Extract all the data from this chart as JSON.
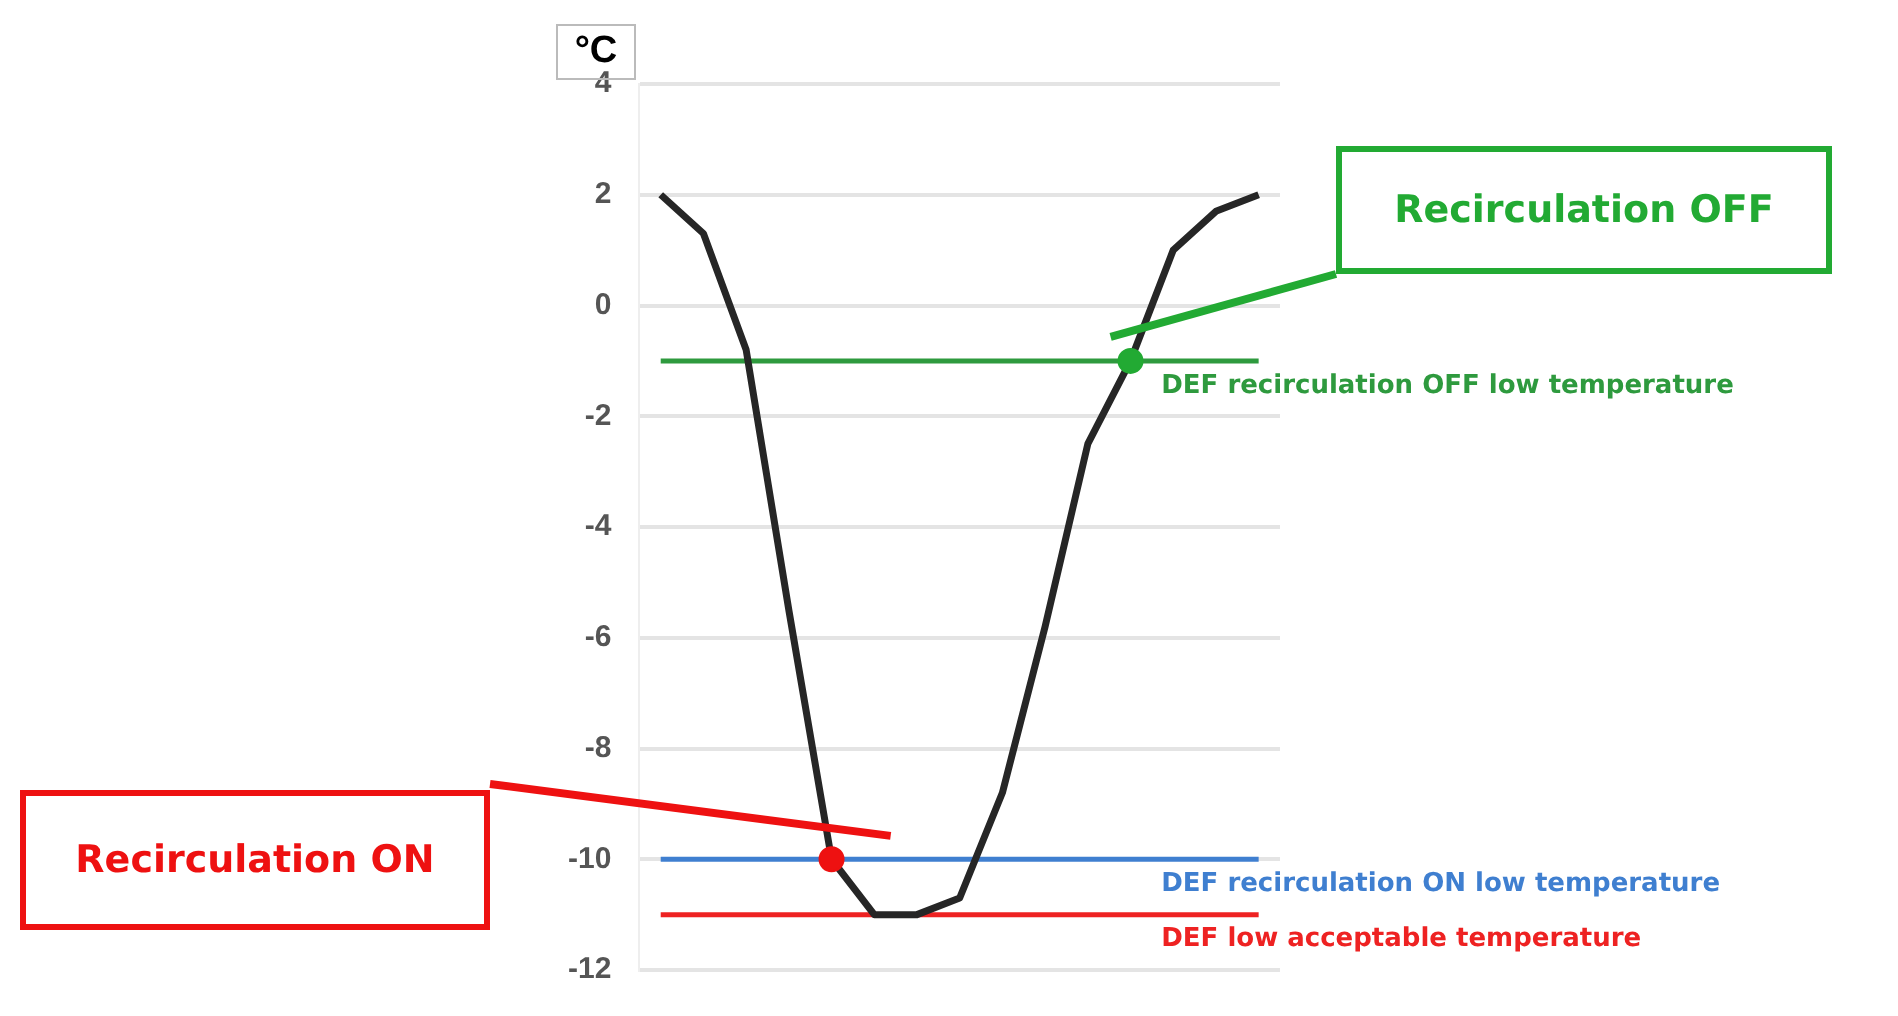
{
  "chart_data": {
    "type": "line",
    "ylabel": "°C",
    "categories": [
      null,
      null,
      null,
      null,
      null,
      null,
      null,
      null,
      null,
      null,
      null,
      null,
      null,
      null,
      null
    ],
    "series": [
      {
        "marker": "none",
        "color": "#262626",
        "values": [
          2,
          1.3,
          -0.8,
          -5.5,
          -10,
          -11,
          -11,
          -10.7,
          -8.8,
          -5.8,
          -2.5,
          -1,
          1,
          1.7,
          2
        ]
      },
      {
        "type": "scatter",
        "marker": "circle",
        "color": "#ee1111",
        "values": [
          null,
          null,
          null,
          null,
          -10,
          null,
          null,
          null,
          null,
          null,
          null,
          null,
          null,
          null,
          null
        ]
      },
      {
        "type": "scatter",
        "marker": "circle",
        "color": "#22aa33",
        "values": [
          null,
          null,
          null,
          null,
          null,
          null,
          null,
          null,
          null,
          null,
          null,
          -1,
          null,
          null,
          null
        ]
      }
    ],
    "ylim": [
      -12,
      4
    ],
    "yticks": [
      -12,
      -10,
      -8,
      -6,
      -4,
      -2,
      0,
      2,
      4
    ],
    "grid": "y",
    "tick_labels": "y",
    "ref_lines": [
      {
        "axis": "y",
        "value": -1,
        "label": "DEF recirculation OFF low temperature",
        "color": "#2e9a3e"
      },
      {
        "axis": "y",
        "value": -10,
        "label": "DEF recirculation ON low temperature",
        "color": "#3f7fd0"
      },
      {
        "axis": "y",
        "value": -11,
        "label": "DEF low acceptable temperature",
        "color": "#ee2222"
      }
    ],
    "annotations": [
      "Recirculation ON",
      "Recirculation OFF"
    ]
  }
}
